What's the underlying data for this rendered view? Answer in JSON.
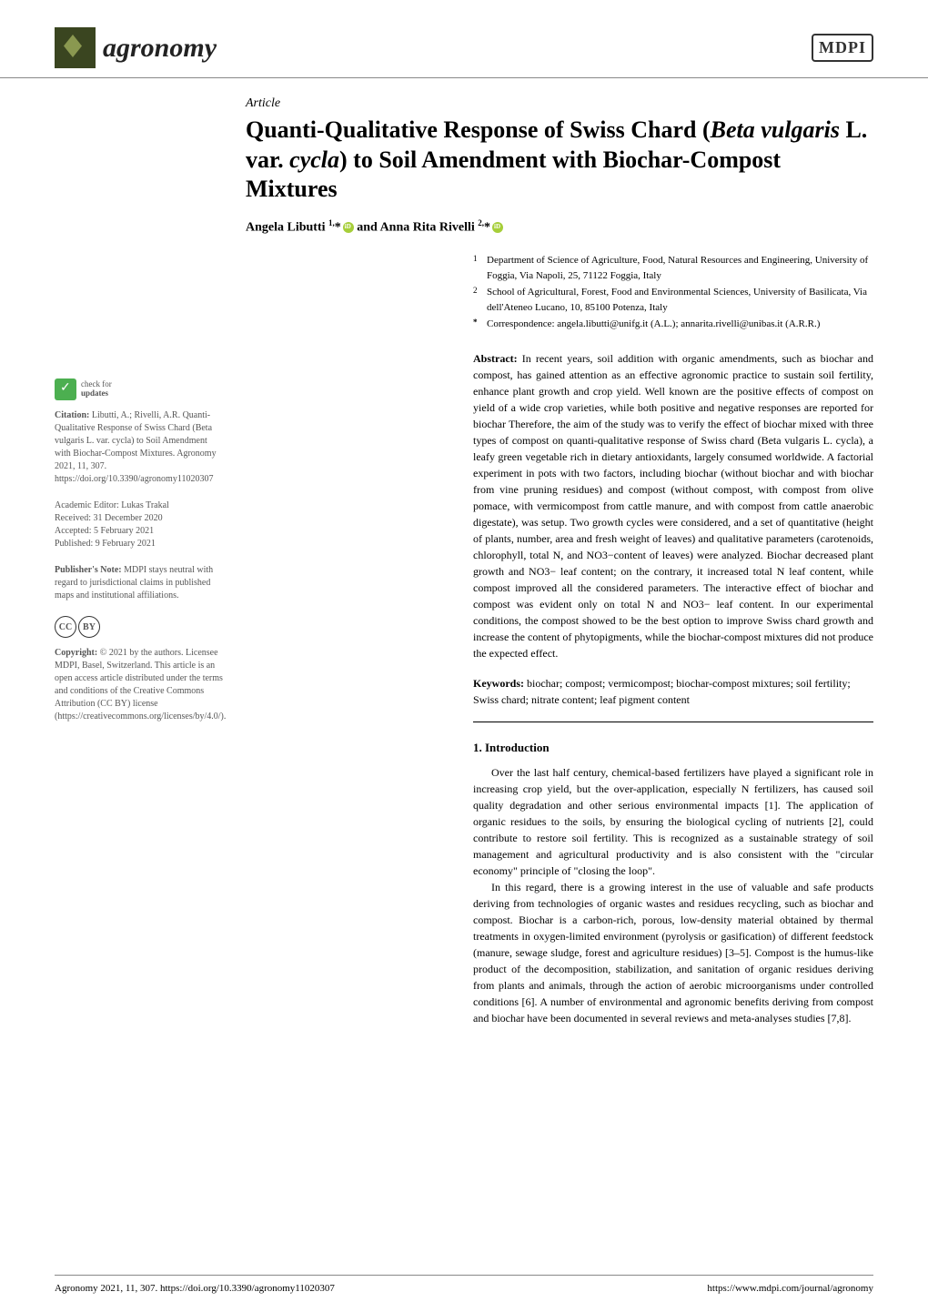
{
  "header": {
    "journal_name": "agronomy",
    "publisher_logo": "MDPI"
  },
  "article": {
    "type": "Article",
    "title_part1": "Quanti-Qualitative Response of Swiss Chard (",
    "title_italic1": "Beta vulgaris",
    "title_part2": " L. var. ",
    "title_italic2": "cycla",
    "title_part3": ") to Soil Amendment with Biochar-Compost Mixtures",
    "authors_text": "Angela Libutti 1,* and Anna Rita Rivelli 2,*"
  },
  "affiliations": {
    "a1_num": "1",
    "a1_text": "Department of Science of Agriculture, Food, Natural Resources and Engineering, University of Foggia, Via Napoli, 25, 71122 Foggia, Italy",
    "a2_num": "2",
    "a2_text": "School of Agricultural, Forest, Food and Environmental Sciences, University of Basilicata, Via dell'Ateneo Lucano, 10, 85100 Potenza, Italy",
    "corr_num": "*",
    "corr_text": "Correspondence: angela.libutti@unifg.it (A.L.); annarita.rivelli@unibas.it (A.R.R.)"
  },
  "abstract": {
    "label": "Abstract:",
    "text": " In recent years, soil addition with organic amendments, such as biochar and compost, has gained attention as an effective agronomic practice to sustain soil fertility, enhance plant growth and crop yield. Well known are the positive effects of compost on yield of a wide crop varieties, while both positive and negative responses are reported for biochar Therefore, the aim of the study was to verify the effect of biochar mixed with three types of compost on quanti-qualitative response of Swiss chard (Beta vulgaris L. cycla), a leafy green vegetable rich in dietary antioxidants, largely consumed worldwide. A factorial experiment in pots with two factors, including biochar (without biochar and with biochar from vine pruning residues) and compost (without compost, with compost from olive pomace, with vermicompost from cattle manure, and with compost from cattle anaerobic digestate), was setup. Two growth cycles were considered, and a set of quantitative (height of plants, number, area and fresh weight of leaves) and qualitative parameters (carotenoids, chlorophyll, total N, and NO3−content of leaves) were analyzed. Biochar decreased plant growth and NO3− leaf content; on the contrary, it increased total N leaf content, while compost improved all the considered parameters. The interactive effect of biochar and compost was evident only on total N and NO3− leaf content. In our experimental conditions, the compost showed to be the best option to improve Swiss chard growth and increase the content of phytopigments, while the biochar-compost mixtures did not produce the expected effect."
  },
  "keywords": {
    "label": "Keywords:",
    "text": " biochar; compost; vermicompost; biochar-compost mixtures; soil fertility; Swiss chard; nitrate content; leaf pigment content"
  },
  "section1": {
    "heading": "1. Introduction",
    "p1": "Over the last half century, chemical-based fertilizers have played a significant role in increasing crop yield, but the over-application, especially N fertilizers, has caused soil quality degradation and other serious environmental impacts [1]. The application of organic residues to the soils, by ensuring the biological cycling of nutrients [2], could contribute to restore soil fertility. This is recognized as a sustainable strategy of soil management and agricultural productivity and is also consistent with the \"circular economy\" principle of \"closing the loop\".",
    "p2": "In this regard, there is a growing interest in the use of valuable and safe products deriving from technologies of organic wastes and residues recycling, such as biochar and compost. Biochar is a carbon-rich, porous, low-density material obtained by thermal treatments in oxygen-limited environment (pyrolysis or gasification) of different feedstock (manure, sewage sludge, forest and agriculture residues) [3–5]. Compost is the humus-like product of the decomposition, stabilization, and sanitation of organic residues deriving from plants and animals, through the action of aerobic microorganisms under controlled conditions [6]. A number of environmental and agronomic benefits deriving from compost and biochar have been documented in several reviews and meta-analyses studies [7,8]."
  },
  "sidebar": {
    "check_updates": "check for updates",
    "citation_label": "Citation:",
    "citation_text": " Libutti, A.; Rivelli, A.R. Quanti-Qualitative Response of Swiss Chard (Beta vulgaris L. var. cycla) to Soil Amendment with Biochar-Compost Mixtures. Agronomy 2021, 11, 307. https://doi.org/10.3390/agronomy11020307",
    "editor_label": "Academic Editor: Lukas Trakal",
    "received": "Received: 31 December 2020",
    "accepted": "Accepted: 5 February 2021",
    "published": "Published: 9 February 2021",
    "publisher_note_label": "Publisher's Note:",
    "publisher_note_text": " MDPI stays neutral with regard to jurisdictional claims in published maps and institutional affiliations.",
    "copyright_label": "Copyright:",
    "copyright_text": " © 2021 by the authors. Licensee MDPI, Basel, Switzerland. This article is an open access article distributed under the terms and conditions of the Creative Commons Attribution (CC BY) license (https://creativecommons.org/licenses/by/4.0/)."
  },
  "footer": {
    "left": "Agronomy 2021, 11, 307. https://doi.org/10.3390/agronomy11020307",
    "right": "https://www.mdpi.com/journal/agronomy"
  },
  "colors": {
    "text": "#000000",
    "link": "#1a5490",
    "journal_icon_bg": "#3a4520",
    "orcid": "#a6ce39",
    "border": "#888888"
  }
}
